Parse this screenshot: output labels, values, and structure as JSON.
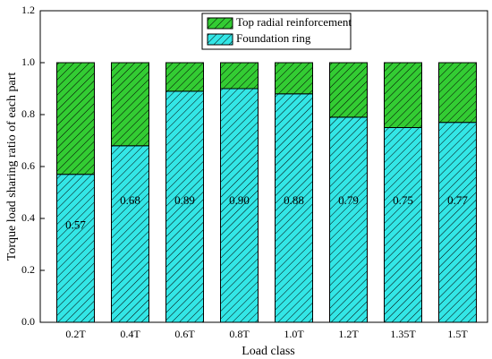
{
  "chart_data": {
    "type": "stacked_bar",
    "x_label": "Load class",
    "y_label": "Torque load sharing ratio of each part",
    "categories": [
      "0.2T",
      "0.4T",
      "0.6T",
      "0.8T",
      "1.0T",
      "1.2T",
      "1.35T",
      "1.5T"
    ],
    "series": [
      {
        "name": "Foundation ring",
        "color": "#33e6e6",
        "values": [
          0.57,
          0.68,
          0.89,
          0.9,
          0.88,
          0.79,
          0.75,
          0.77
        ],
        "value_labels": [
          "0.57",
          "0.68",
          "0.89",
          "0.90",
          "0.88",
          "0.79",
          "0.75",
          "0.77"
        ]
      },
      {
        "name": "Top radial reinforcement",
        "color": "#33cc33",
        "values": [
          0.43,
          0.32,
          0.11,
          0.1,
          0.12,
          0.21,
          0.25,
          0.23
        ]
      }
    ],
    "ylim": [
      0,
      1.2
    ],
    "yticks": [
      {
        "value": 0,
        "label": "0.0"
      },
      0.2,
      0.4,
      0.6,
      0.8,
      {
        "value": 1.0,
        "label": "1.0"
      },
      1.2
    ]
  }
}
